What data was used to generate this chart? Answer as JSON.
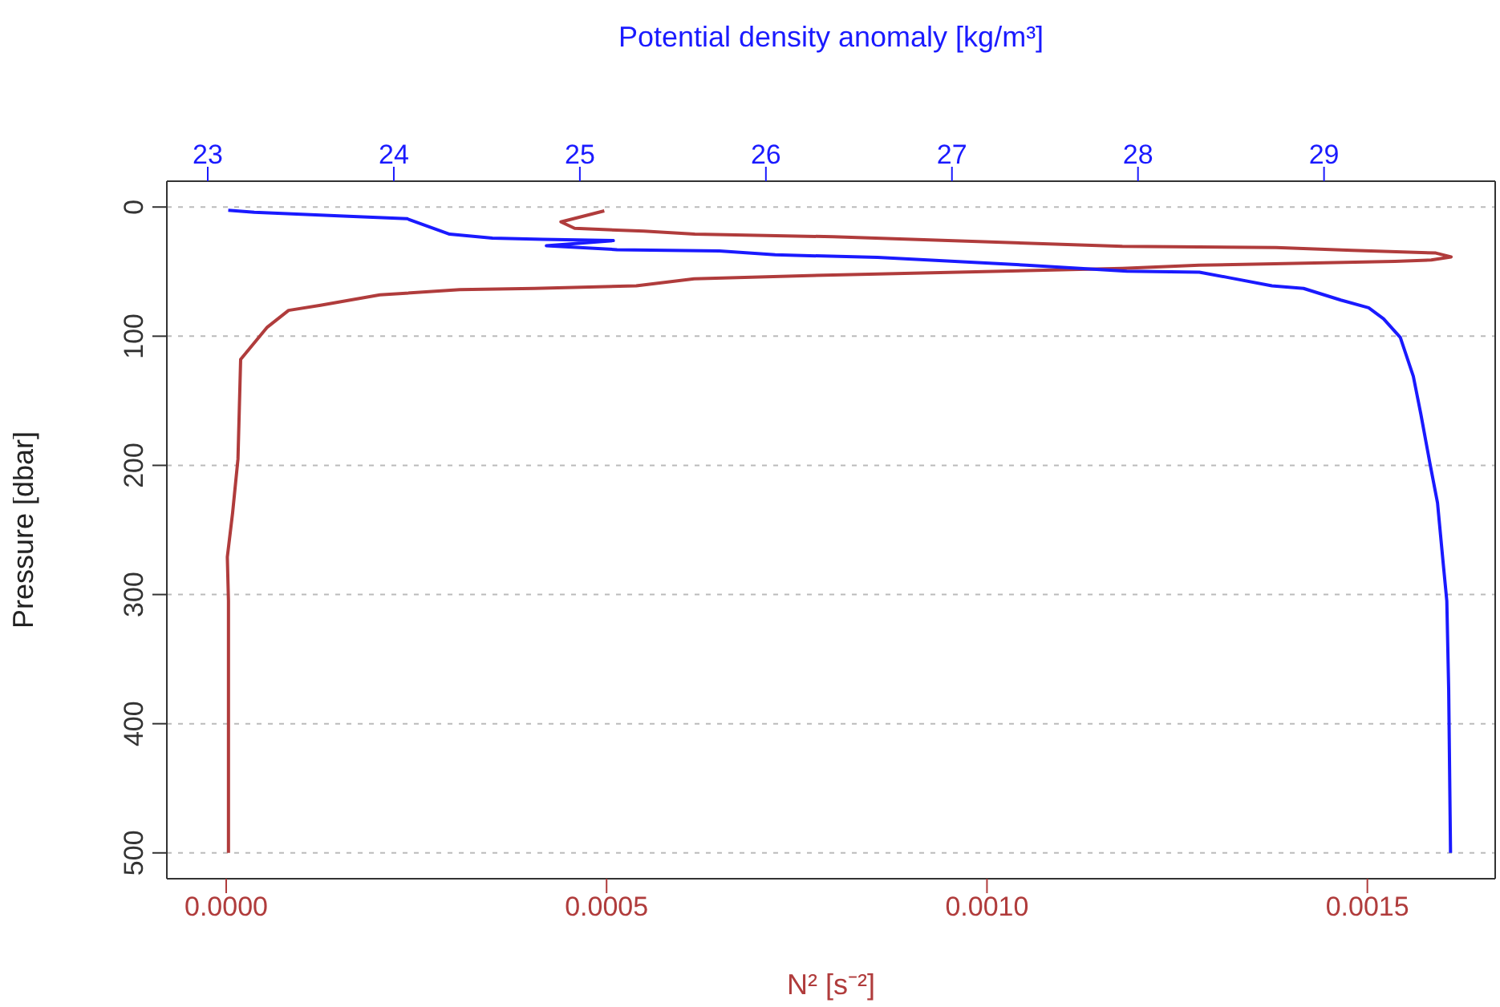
{
  "chart_data": {
    "type": "line",
    "xlabel": "N² [s⁻²]",
    "ylabel": "Pressure [dbar]",
    "x2label": "Potential density anomaly [kg/m³]",
    "xlim": [
      -7.8e-05,
      0.001668
    ],
    "xticks": [
      {
        "value": 0,
        "label": "0.0000"
      },
      {
        "value": 0.0005,
        "label": "0.0005"
      },
      {
        "value": 0.001,
        "label": "0.0010"
      },
      {
        "value": 0.0015,
        "label": "0.0015"
      }
    ],
    "x2lim": [
      22.78,
      29.92
    ],
    "x2ticks": [
      23,
      24,
      25,
      26,
      27,
      28,
      29
    ],
    "ylim": [
      520,
      -20
    ],
    "yticks": [
      0,
      100,
      200,
      300,
      400,
      500
    ],
    "grid": "y",
    "line_style": "solid",
    "marker": "none",
    "series": [
      {
        "color": "#b03c3c",
        "x": [
          0.000497,
          0.00044,
          0.000458,
          0.000549,
          0.000616,
          0.000798,
          0.001178,
          0.00138,
          0.00148,
          0.00159,
          0.00161,
          0.001584,
          0.001536,
          0.001378,
          0.001279,
          0.001178,
          0.000798,
          0.000615,
          0.000539,
          0.000405,
          0.000307,
          0.000202,
          0.000124,
          8.2e-05,
          5.4e-05,
          1.9e-05,
          1.55e-05,
          8.4e-06,
          1.5e-06,
          3e-06,
          3e-06
        ],
        "values": [
          3,
          11.5,
          16.5,
          18.7,
          21,
          23,
          30.5,
          31.4,
          33.5,
          35.6,
          38.6,
          41,
          42,
          44,
          45,
          47.5,
          52.6,
          55.6,
          61,
          63,
          64,
          68,
          76,
          80,
          93,
          118,
          195,
          237,
          271,
          305,
          500
        ]
      },
      {
        "color": "#1a1aff",
        "axis": "x2",
        "x": [
          23.11,
          23.25,
          23.73,
          24.07,
          24.3,
          24.53,
          24.8,
          25.18,
          24.82,
          25.2,
          25.75,
          26.05,
          26.6,
          27.4,
          27.94,
          28.33,
          28.49,
          28.72,
          28.89,
          29.09,
          29.24,
          29.32,
          29.41,
          29.48,
          29.52,
          29.57,
          29.61,
          29.64,
          29.66,
          29.67,
          29.68
        ],
        "values": [
          2.5,
          4,
          7,
          9,
          21,
          24,
          25,
          26,
          30,
          33,
          34,
          37,
          39,
          45,
          49.6,
          50.5,
          54.7,
          61,
          63,
          72,
          78,
          86.5,
          101,
          131,
          160,
          199,
          229,
          275,
          305,
          373,
          500
        ]
      }
    ]
  }
}
